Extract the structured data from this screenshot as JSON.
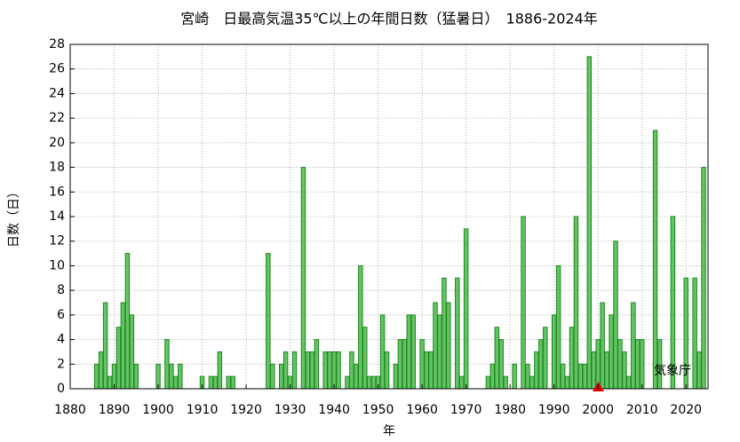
{
  "chart_data": {
    "type": "bar",
    "title": "宮崎　日最高気温35℃以上の年間日数（猛暑日）　1886-2024年",
    "x_label": "年",
    "y_label": "日数（日）",
    "annotation": "気象庁",
    "color": "#66c266",
    "edge_color": "#1a8a1a",
    "grid": true,
    "x": [
      1886,
      1887,
      1888,
      1889,
      1890,
      1891,
      1892,
      1893,
      1894,
      1895,
      1896,
      1897,
      1898,
      1899,
      1900,
      1901,
      1902,
      1903,
      1904,
      1905,
      1906,
      1907,
      1908,
      1909,
      1910,
      1911,
      1912,
      1913,
      1914,
      1915,
      1916,
      1917,
      1918,
      1919,
      1920,
      1921,
      1922,
      1923,
      1924,
      1925,
      1926,
      1927,
      1928,
      1929,
      1930,
      1931,
      1932,
      1933,
      1934,
      1935,
      1936,
      1937,
      1938,
      1939,
      1940,
      1941,
      1942,
      1943,
      1944,
      1945,
      1946,
      1947,
      1948,
      1949,
      1950,
      1951,
      1952,
      1953,
      1954,
      1955,
      1956,
      1957,
      1958,
      1959,
      1960,
      1961,
      1962,
      1963,
      1964,
      1965,
      1966,
      1967,
      1968,
      1969,
      1970,
      1971,
      1972,
      1973,
      1974,
      1975,
      1976,
      1977,
      1978,
      1979,
      1980,
      1981,
      1982,
      1983,
      1984,
      1985,
      1986,
      1987,
      1988,
      1989,
      1990,
      1991,
      1992,
      1993,
      1994,
      1995,
      1996,
      1997,
      1998,
      1999,
      2000,
      2001,
      2002,
      2003,
      2004,
      2005,
      2006,
      2007,
      2008,
      2009,
      2010,
      2011,
      2012,
      2013,
      2014,
      2015,
      2016,
      2017,
      2018,
      2019,
      2020,
      2021,
      2022,
      2023,
      2024
    ],
    "values": [
      2,
      3,
      7,
      1,
      2,
      5,
      7,
      11,
      6,
      2,
      0,
      0,
      0,
      0,
      2,
      0,
      4,
      2,
      1,
      2,
      0,
      0,
      0,
      0,
      1,
      0,
      1,
      1,
      3,
      0,
      1,
      1,
      0,
      0,
      0,
      0,
      0,
      0,
      0,
      11,
      2,
      0,
      2,
      3,
      1,
      3,
      0,
      18,
      3,
      3,
      4,
      0,
      3,
      3,
      3,
      3,
      0,
      1,
      3,
      2,
      10,
      5,
      1,
      1,
      1,
      6,
      3,
      0,
      2,
      4,
      4,
      6,
      6,
      0,
      4,
      3,
      3,
      7,
      6,
      9,
      7,
      0,
      9,
      1,
      13,
      0,
      0,
      0,
      0,
      1,
      2,
      5,
      4,
      1,
      0,
      2,
      0,
      14,
      2,
      1,
      3,
      4,
      5,
      0,
      6,
      10,
      2,
      1,
      5,
      14,
      2,
      2,
      27,
      3,
      4,
      7,
      3,
      6,
      12,
      4,
      3,
      1,
      7,
      4,
      4,
      0,
      0,
      21,
      4,
      0,
      0,
      14,
      0,
      0,
      9,
      0,
      9,
      3,
      18
    ],
    "xlim": [
      1880,
      2025
    ],
    "xticks": [
      1880,
      1890,
      1900,
      1910,
      1920,
      1930,
      1940,
      1950,
      1960,
      1970,
      1980,
      1990,
      2000,
      2010,
      2020
    ],
    "ylim": [
      0,
      28
    ],
    "yticks": [
      0,
      2,
      4,
      6,
      8,
      10,
      12,
      14,
      16,
      18,
      20,
      22,
      24,
      26,
      28
    ]
  }
}
